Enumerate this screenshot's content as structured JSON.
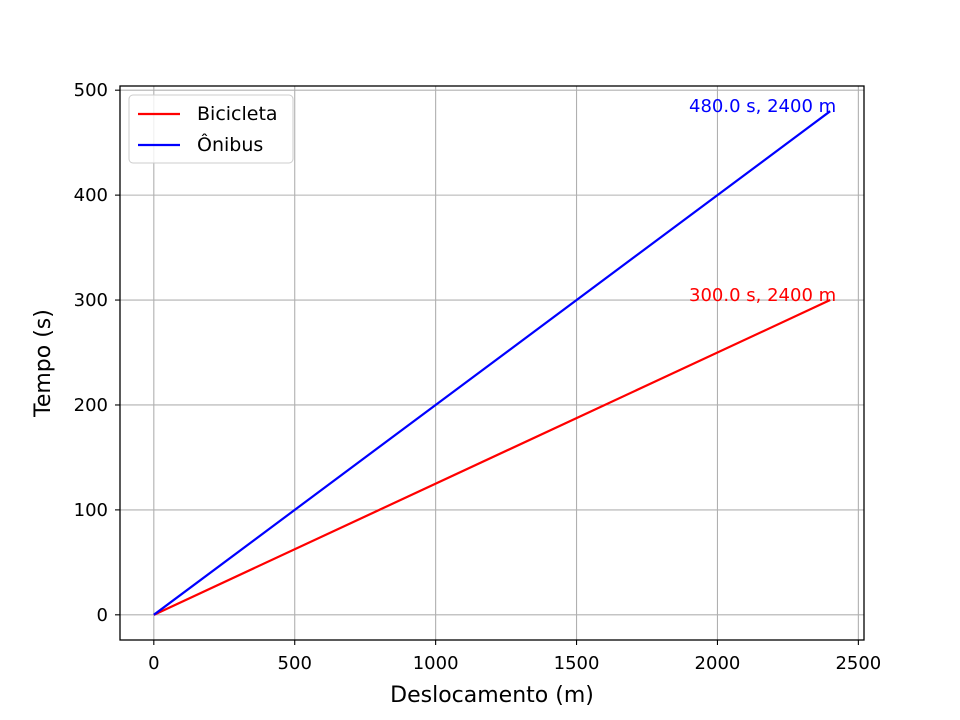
{
  "chart_data": {
    "type": "line",
    "title": "",
    "xlabel": "Deslocamento (m)",
    "ylabel": "Tempo (s)",
    "xlim": [
      -120,
      2520
    ],
    "ylim": [
      -24,
      504
    ],
    "xticks": [
      0,
      500,
      1000,
      1500,
      2000,
      2500
    ],
    "yticks": [
      0,
      100,
      200,
      300,
      400,
      500
    ],
    "grid": true,
    "legend_position": "upper-left",
    "series": [
      {
        "name": "Bicicleta",
        "color": "#ff0000",
        "x": [
          0,
          2400
        ],
        "y": [
          0,
          300
        ]
      },
      {
        "name": "Ônibus",
        "color": "#0000ff",
        "x": [
          0,
          2400
        ],
        "y": [
          0,
          480
        ]
      }
    ],
    "annotations": [
      {
        "text": "300.0 s, 2400 m",
        "x": 2400,
        "y": 300,
        "color": "#ff0000"
      },
      {
        "text": "480.0 s, 2400 m",
        "x": 2400,
        "y": 480,
        "color": "#0000ff"
      }
    ]
  }
}
